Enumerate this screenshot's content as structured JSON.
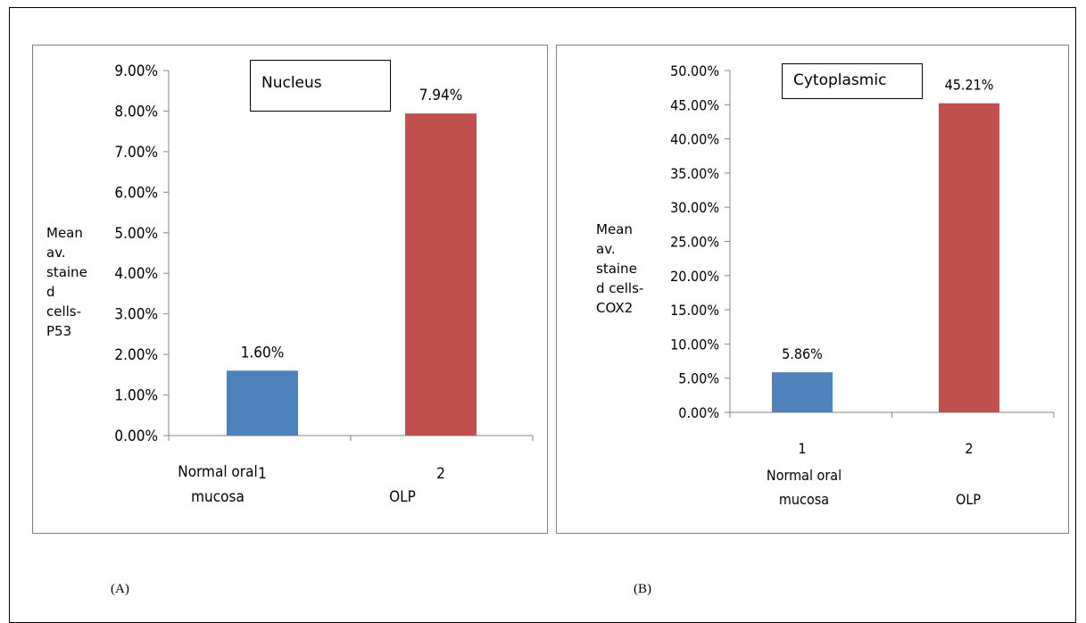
{
  "chart_data": [
    {
      "type": "bar",
      "title": "Nucleus",
      "ylabel": "Mean av. staine d cells- P53",
      "ylabel_lines": [
        "Mean",
        "av.",
        "staine",
        "d",
        "cells-",
        "P53"
      ],
      "categories": [
        "1",
        "2"
      ],
      "category_labels": [
        [
          "Normal oral",
          "mucosa"
        ],
        [
          "OLP"
        ]
      ],
      "values": [
        1.6,
        7.94
      ],
      "data_labels": [
        "1.60%",
        "7.94%"
      ],
      "bar_colors": [
        "#4f81bd",
        "#c0504d"
      ],
      "ylim": [
        0,
        9
      ],
      "ytick_step": 1,
      "yticks": [
        "0.00%",
        "1.00%",
        "2.00%",
        "3.00%",
        "4.00%",
        "5.00%",
        "6.00%",
        "7.00%",
        "8.00%",
        "9.00%"
      ],
      "grid": false,
      "caption": "(A)"
    },
    {
      "type": "bar",
      "title": "Cytoplasmic",
      "ylabel": "Mean av. staine d cells- COX2",
      "ylabel_lines": [
        "Mean",
        "av.",
        "staine",
        "d cells-",
        "COX2"
      ],
      "categories": [
        "1",
        "2"
      ],
      "category_labels": [
        [
          "Normal oral",
          "mucosa"
        ],
        [
          "OLP"
        ]
      ],
      "values": [
        5.86,
        45.21
      ],
      "data_labels": [
        "5.86%",
        "45.21%"
      ],
      "bar_colors": [
        "#4f81bd",
        "#c0504d"
      ],
      "ylim": [
        0,
        50
      ],
      "ytick_step": 5,
      "yticks": [
        "0.00%",
        "5.00%",
        "10.00%",
        "15.00%",
        "20.00%",
        "25.00%",
        "30.00%",
        "35.00%",
        "40.00%",
        "45.00%",
        "50.00%"
      ],
      "grid": false,
      "caption": "(B)"
    }
  ]
}
